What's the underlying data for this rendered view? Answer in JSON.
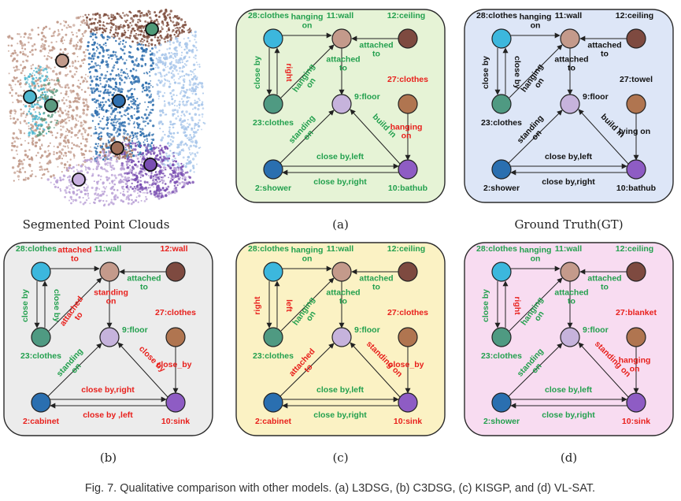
{
  "colors": {
    "correct": "#23a04e",
    "wrong": "#e8201c",
    "node_text_correct": "#23a04e",
    "node_text_wrong": "#e8201c",
    "panel_a_bg": "#e6f3d6",
    "panel_gt_bg": "#dde6f7",
    "panel_b_bg": "#ececec",
    "panel_c_bg": "#fbf2c4",
    "panel_d_bg": "#f8dcf1"
  },
  "pointcloud": {
    "caption": "Segmented Point Clouds"
  },
  "figure_caption": "Fig. 7. Qualitative comparison with other models. (a) L3DSG, (b) C3DSG, (c) KISGP, and (d) VL-SAT.",
  "panels": [
    {
      "id": "a",
      "caption": "(a)",
      "bg": "#e6f3d6",
      "nodes": [
        {
          "key": "n28",
          "label": "28:clothes",
          "status": "correct"
        },
        {
          "key": "n11",
          "label": "11:wall",
          "status": "correct"
        },
        {
          "key": "n12",
          "label": "12:ceiling",
          "status": "correct"
        },
        {
          "key": "n23",
          "label": "23:clothes",
          "status": "correct"
        },
        {
          "key": "n9",
          "label": "9:floor",
          "status": "correct"
        },
        {
          "key": "n27",
          "label": "27:clothes",
          "status": "wrong"
        },
        {
          "key": "n2",
          "label": "2:shower",
          "status": "correct"
        },
        {
          "key": "n10",
          "label": "10:bathub",
          "status": "correct"
        }
      ],
      "edges": [
        {
          "key": "e28_11",
          "lines": [
            "hanging",
            "on"
          ],
          "status": "correct"
        },
        {
          "key": "e12_11",
          "lines": [
            "attached",
            "to"
          ],
          "status": "correct"
        },
        {
          "key": "e28_23",
          "lines": [
            "close by"
          ],
          "status": "correct"
        },
        {
          "key": "e23_28",
          "lines": [
            "right"
          ],
          "status": "wrong"
        },
        {
          "key": "e23_11",
          "lines": [
            "hanging",
            "on"
          ],
          "status": "correct"
        },
        {
          "key": "e11_9",
          "lines": [
            "attached",
            "to"
          ],
          "status": "correct"
        },
        {
          "key": "e27_10",
          "lines": [
            "hanging",
            "on"
          ],
          "status": "wrong"
        },
        {
          "key": "e2_9",
          "lines": [
            "standing",
            "on"
          ],
          "status": "correct"
        },
        {
          "key": "e10_9",
          "lines": [
            "build in"
          ],
          "status": "correct"
        },
        {
          "key": "e2_10",
          "lines": [
            "close by,left"
          ],
          "status": "correct"
        },
        {
          "key": "e10_2",
          "lines": [
            "close by,right"
          ],
          "status": "correct"
        }
      ]
    },
    {
      "id": "gt",
      "caption": "Ground Truth(GT)",
      "bg": "#dde6f7",
      "nodes": [
        {
          "key": "n28",
          "label": "28:clothes",
          "status": "plain"
        },
        {
          "key": "n11",
          "label": "11:wall",
          "status": "plain"
        },
        {
          "key": "n12",
          "label": "12:ceiling",
          "status": "plain"
        },
        {
          "key": "n23",
          "label": "23:clothes",
          "status": "plain"
        },
        {
          "key": "n9",
          "label": "9:floor",
          "status": "plain"
        },
        {
          "key": "n27",
          "label": "27:towel",
          "status": "plain"
        },
        {
          "key": "n2",
          "label": "2:shower",
          "status": "plain"
        },
        {
          "key": "n10",
          "label": "10:bathub",
          "status": "plain"
        }
      ],
      "edges": [
        {
          "key": "e28_11",
          "lines": [
            "hanging",
            "on"
          ],
          "status": "plain"
        },
        {
          "key": "e12_11",
          "lines": [
            "attached",
            "to"
          ],
          "status": "plain"
        },
        {
          "key": "e28_23",
          "lines": [
            "close by"
          ],
          "status": "plain"
        },
        {
          "key": "e23_28",
          "lines": [
            "close by"
          ],
          "status": "plain"
        },
        {
          "key": "e23_11",
          "lines": [
            "hanging",
            "on"
          ],
          "status": "plain"
        },
        {
          "key": "e11_9",
          "lines": [
            "attached",
            "to"
          ],
          "status": "plain"
        },
        {
          "key": "e27_10",
          "lines": [
            "lying on"
          ],
          "status": "plain"
        },
        {
          "key": "e2_9",
          "lines": [
            "standing",
            "on"
          ],
          "status": "plain"
        },
        {
          "key": "e10_9",
          "lines": [
            "build in"
          ],
          "status": "plain"
        },
        {
          "key": "e2_10",
          "lines": [
            "close by,left"
          ],
          "status": "plain"
        },
        {
          "key": "e10_2",
          "lines": [
            "close by,right"
          ],
          "status": "plain"
        }
      ]
    },
    {
      "id": "b",
      "caption": "(b)",
      "bg": "#ececec",
      "nodes": [
        {
          "key": "n28",
          "label": "28:clothes",
          "status": "correct"
        },
        {
          "key": "n11",
          "label": "11:wall",
          "status": "correct"
        },
        {
          "key": "n12",
          "label": "12:wall",
          "status": "wrong"
        },
        {
          "key": "n23",
          "label": "23:clothes",
          "status": "correct"
        },
        {
          "key": "n9",
          "label": "9:floor",
          "status": "correct"
        },
        {
          "key": "n27",
          "label": "27:clothes",
          "status": "wrong"
        },
        {
          "key": "n2",
          "label": "2:cabinet",
          "status": "wrong"
        },
        {
          "key": "n10",
          "label": "10:sink",
          "status": "wrong"
        }
      ],
      "edges": [
        {
          "key": "e28_11",
          "lines": [
            "attached",
            "to"
          ],
          "status": "wrong"
        },
        {
          "key": "e12_11",
          "lines": [
            "attached",
            "to"
          ],
          "status": "correct"
        },
        {
          "key": "e28_23",
          "lines": [
            "close by"
          ],
          "status": "correct"
        },
        {
          "key": "e23_28",
          "lines": [
            "close by"
          ],
          "status": "correct"
        },
        {
          "key": "e23_11",
          "lines": [
            "attached",
            "to"
          ],
          "status": "wrong"
        },
        {
          "key": "e11_9",
          "lines": [
            "standing",
            "on"
          ],
          "status": "wrong"
        },
        {
          "key": "e27_10",
          "lines": [
            "close_by"
          ],
          "status": "wrong"
        },
        {
          "key": "e2_9",
          "lines": [
            "standing",
            "on"
          ],
          "status": "correct"
        },
        {
          "key": "e10_9",
          "lines": [
            "close by"
          ],
          "status": "wrong"
        },
        {
          "key": "e2_10",
          "lines": [
            "close by,right"
          ],
          "status": "wrong"
        },
        {
          "key": "e10_2",
          "lines": [
            "close by ,left"
          ],
          "status": "wrong"
        }
      ]
    },
    {
      "id": "c",
      "caption": "(c)",
      "bg": "#fbf2c4",
      "nodes": [
        {
          "key": "n28",
          "label": "28:clothes",
          "status": "correct"
        },
        {
          "key": "n11",
          "label": "11:wall",
          "status": "correct"
        },
        {
          "key": "n12",
          "label": "12:ceiling",
          "status": "correct"
        },
        {
          "key": "n23",
          "label": "23:clothes",
          "status": "correct"
        },
        {
          "key": "n9",
          "label": "9:floor",
          "status": "correct"
        },
        {
          "key": "n27",
          "label": "27:clothes",
          "status": "wrong"
        },
        {
          "key": "n2",
          "label": "2:cabinet",
          "status": "wrong"
        },
        {
          "key": "n10",
          "label": "10:sink",
          "status": "wrong"
        }
      ],
      "edges": [
        {
          "key": "e28_11",
          "lines": [
            "hanging",
            "on"
          ],
          "status": "correct"
        },
        {
          "key": "e12_11",
          "lines": [
            "attached",
            "to"
          ],
          "status": "correct"
        },
        {
          "key": "e28_23",
          "lines": [
            "right"
          ],
          "status": "wrong"
        },
        {
          "key": "e23_28",
          "lines": [
            "left"
          ],
          "status": "wrong"
        },
        {
          "key": "e23_11",
          "lines": [
            "hanging",
            "on"
          ],
          "status": "correct"
        },
        {
          "key": "e11_9",
          "lines": [
            "attached",
            "to"
          ],
          "status": "correct"
        },
        {
          "key": "e27_10",
          "lines": [
            "close_by"
          ],
          "status": "wrong"
        },
        {
          "key": "e2_9",
          "lines": [
            "attached",
            "to"
          ],
          "status": "wrong"
        },
        {
          "key": "e10_9",
          "lines": [
            "standing on"
          ],
          "status": "wrong"
        },
        {
          "key": "e2_10",
          "lines": [
            "close by,left"
          ],
          "status": "correct"
        },
        {
          "key": "e10_2",
          "lines": [
            "close by,right"
          ],
          "status": "correct"
        }
      ]
    },
    {
      "id": "d",
      "caption": "(d)",
      "bg": "#f8dcf1",
      "nodes": [
        {
          "key": "n28",
          "label": "28:clothes",
          "status": "correct"
        },
        {
          "key": "n11",
          "label": "11:wall",
          "status": "correct"
        },
        {
          "key": "n12",
          "label": "12:ceiling",
          "status": "correct"
        },
        {
          "key": "n23",
          "label": "23:clothes",
          "status": "correct"
        },
        {
          "key": "n9",
          "label": "9:floor",
          "status": "correct"
        },
        {
          "key": "n27",
          "label": "27:blanket",
          "status": "wrong"
        },
        {
          "key": "n2",
          "label": "2:shower",
          "status": "correct"
        },
        {
          "key": "n10",
          "label": "10:sink",
          "status": "wrong"
        }
      ],
      "edges": [
        {
          "key": "e28_11",
          "lines": [
            "hanging",
            "on"
          ],
          "status": "correct"
        },
        {
          "key": "e12_11",
          "lines": [
            "attached",
            "to"
          ],
          "status": "correct"
        },
        {
          "key": "e28_23",
          "lines": [
            "close by"
          ],
          "status": "correct"
        },
        {
          "key": "e23_28",
          "lines": [
            "right"
          ],
          "status": "wrong"
        },
        {
          "key": "e23_11",
          "lines": [
            "hanging",
            "on"
          ],
          "status": "correct"
        },
        {
          "key": "e11_9",
          "lines": [
            "attached",
            "to"
          ],
          "status": "correct"
        },
        {
          "key": "e27_10",
          "lines": [
            "hanging",
            "on"
          ],
          "status": "wrong"
        },
        {
          "key": "e2_9",
          "lines": [
            "standing",
            "on"
          ],
          "status": "correct"
        },
        {
          "key": "e10_9",
          "lines": [
            "standing on"
          ],
          "status": "wrong"
        },
        {
          "key": "e2_10",
          "lines": [
            "close by,left"
          ],
          "status": "correct"
        },
        {
          "key": "e10_2",
          "lines": [
            "close by,right"
          ],
          "status": "correct"
        }
      ]
    }
  ]
}
